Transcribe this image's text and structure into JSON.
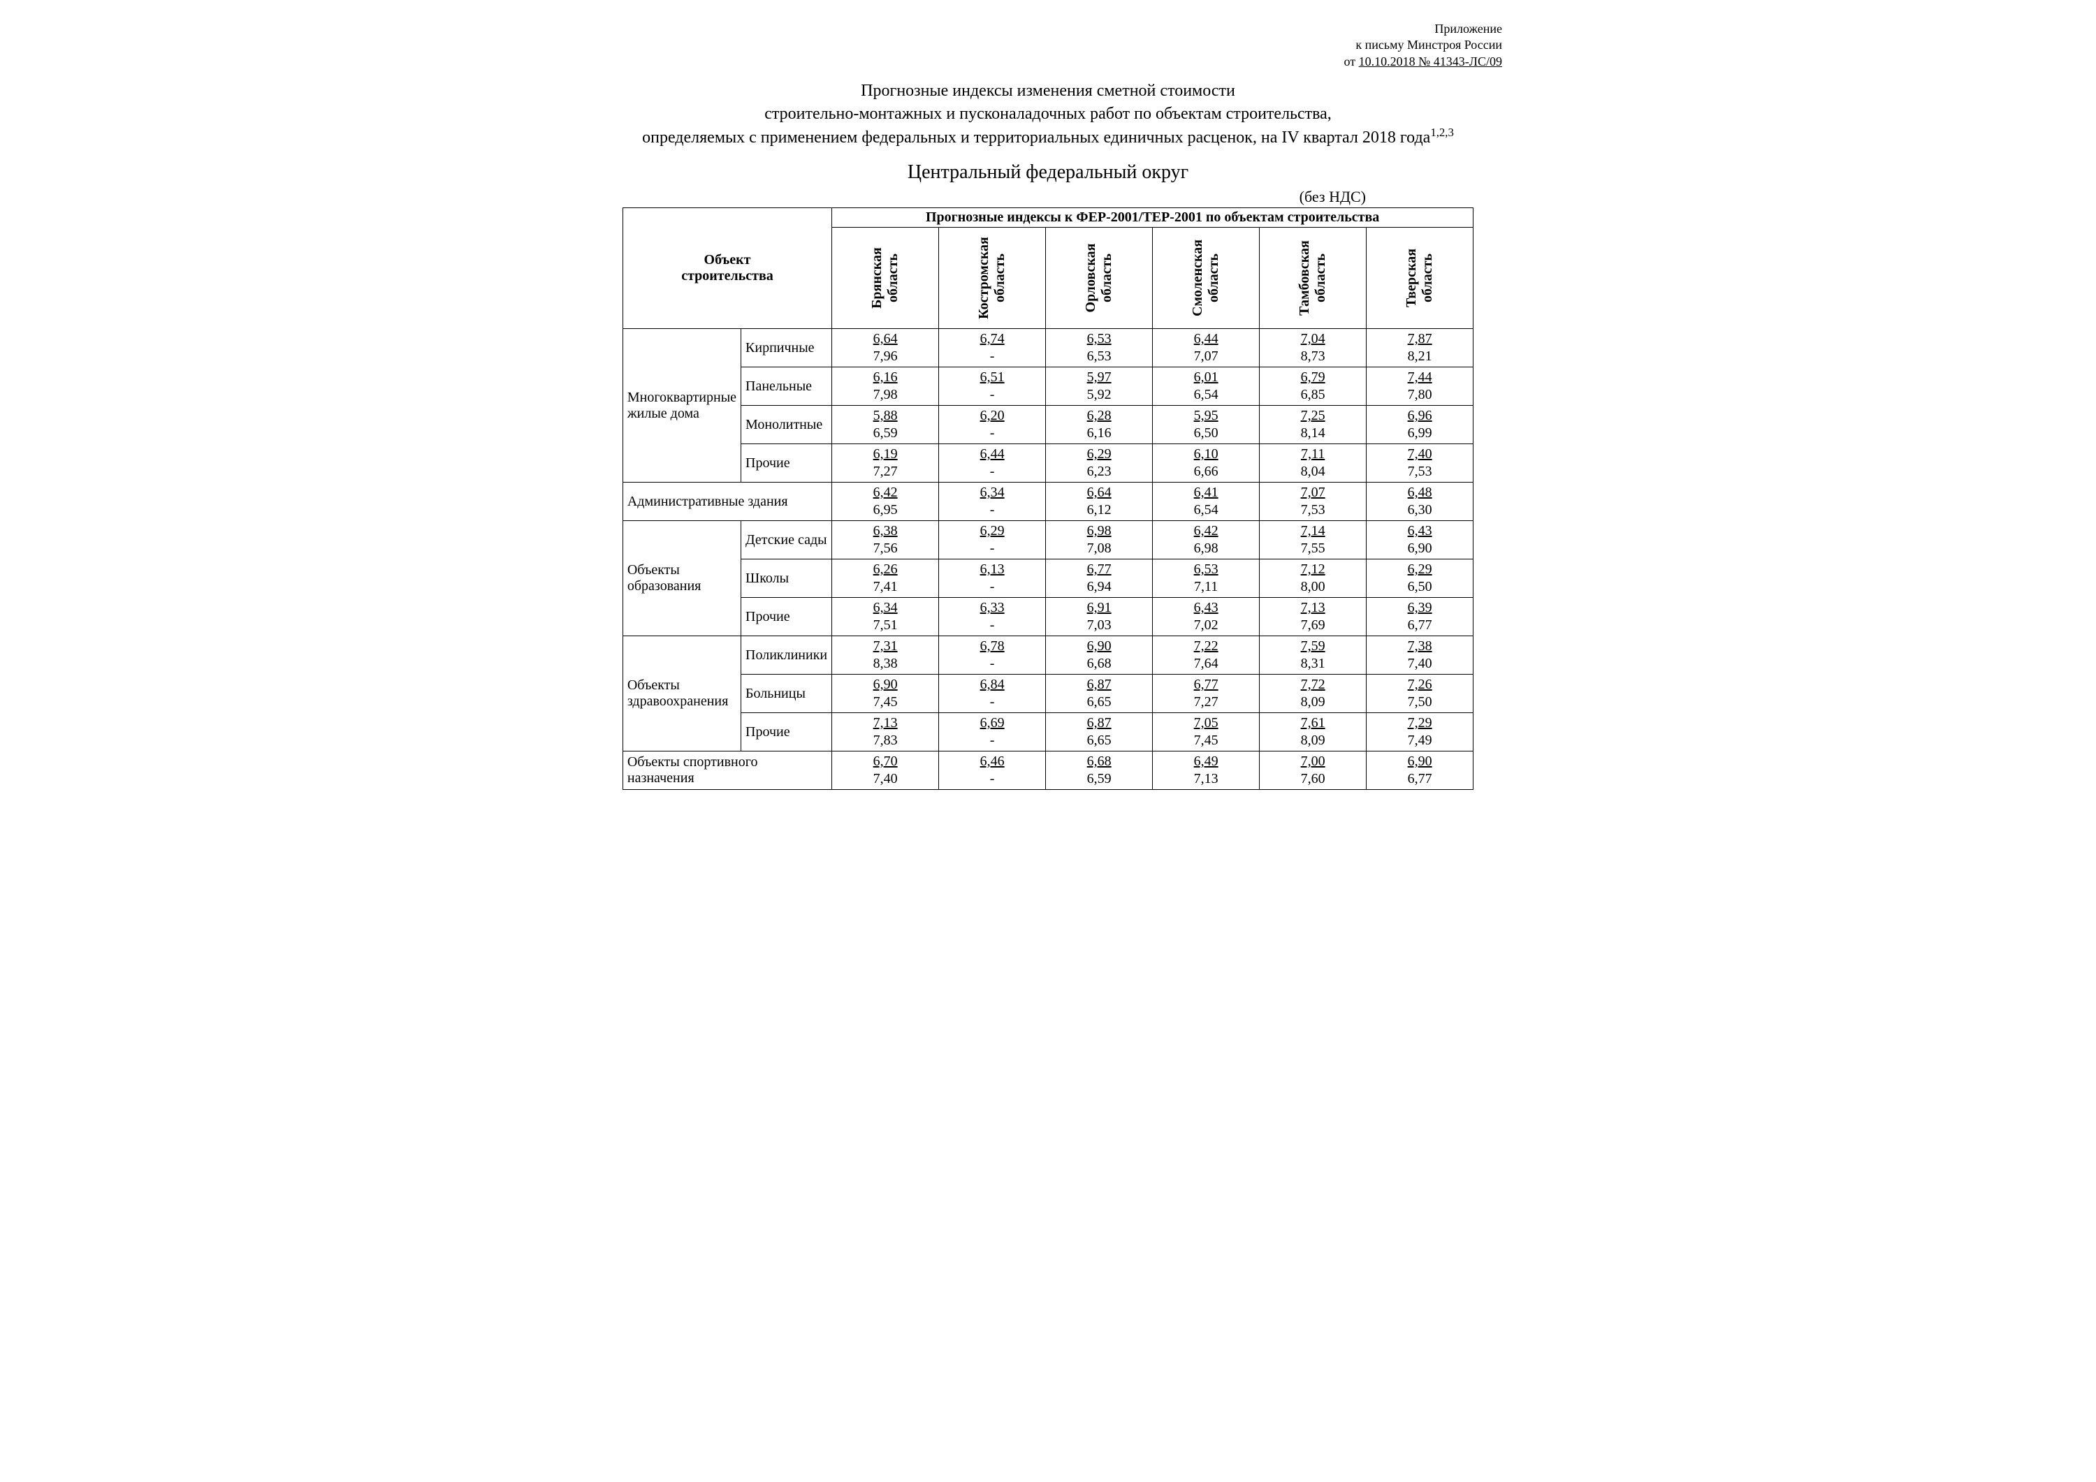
{
  "annex": {
    "line1": "Приложение",
    "line2": "к письму Минстроя России",
    "line3_prefix": "от ",
    "line3_ref": "10.10.2018 № 41343-ЛС/09"
  },
  "title": {
    "l1": "Прогнозные индексы изменения сметной стоимости",
    "l2": "строительно-монтажных и пусконаладочных работ по объектам строительства,",
    "l3": "определяемых с применением федеральных и территориальных единичных расценок, на IV квартал 2018 года",
    "l3_sup": "1,2,3"
  },
  "subtitle": "Центральный федеральный округ",
  "note": "(без НДС)",
  "table": {
    "header_main": "Прогнозные индексы к ФЕР-2001/ТЕР-2001 по объектам строительства",
    "header_obj_l1": "Объект",
    "header_obj_l2": "строительства",
    "regions": [
      "Брянская область",
      "Костромская область",
      "Орловская область",
      "Смоленская область",
      "Тамбовская область",
      "Тверская область"
    ],
    "groups": [
      {
        "label": "Многоквартирные жилые дома",
        "rows": [
          {
            "sub": "Кирпичные",
            "vals": [
              [
                "6,64",
                "7,96"
              ],
              [
                "6,74",
                "-"
              ],
              [
                "6,53",
                "6,53"
              ],
              [
                "6,44",
                "7,07"
              ],
              [
                "7,04",
                "8,73"
              ],
              [
                "7,87",
                "8,21"
              ]
            ]
          },
          {
            "sub": "Панельные",
            "vals": [
              [
                "6,16",
                "7,98"
              ],
              [
                "6,51",
                "-"
              ],
              [
                "5,97",
                "5,92"
              ],
              [
                "6,01",
                "6,54"
              ],
              [
                "6,79",
                "6,85"
              ],
              [
                "7,44",
                "7,80"
              ]
            ]
          },
          {
            "sub": "Монолитные",
            "vals": [
              [
                "5,88",
                "6,59"
              ],
              [
                "6,20",
                "-"
              ],
              [
                "6,28",
                "6,16"
              ],
              [
                "5,95",
                "6,50"
              ],
              [
                "7,25",
                "8,14"
              ],
              [
                "6,96",
                "6,99"
              ]
            ]
          },
          {
            "sub": "Прочие",
            "vals": [
              [
                "6,19",
                "7,27"
              ],
              [
                "6,44",
                "-"
              ],
              [
                "6,29",
                "6,23"
              ],
              [
                "6,10",
                "6,66"
              ],
              [
                "7,11",
                "8,04"
              ],
              [
                "7,40",
                "7,53"
              ]
            ]
          }
        ]
      },
      {
        "label": "Административные здания",
        "span2": true,
        "rows": [
          {
            "sub": null,
            "vals": [
              [
                "6,42",
                "6,95"
              ],
              [
                "6,34",
                "-"
              ],
              [
                "6,64",
                "6,12"
              ],
              [
                "6,41",
                "6,54"
              ],
              [
                "7,07",
                "7,53"
              ],
              [
                "6,48",
                "6,30"
              ]
            ]
          }
        ]
      },
      {
        "label": "Объекты образования",
        "rows": [
          {
            "sub": "Детские сады",
            "vals": [
              [
                "6,38",
                "7,56"
              ],
              [
                "6,29",
                "-"
              ],
              [
                "6,98",
                "7,08"
              ],
              [
                "6,42",
                "6,98"
              ],
              [
                "7,14",
                "7,55"
              ],
              [
                "6,43",
                "6,90"
              ]
            ]
          },
          {
            "sub": "Школы",
            "vals": [
              [
                "6,26",
                "7,41"
              ],
              [
                "6,13",
                "-"
              ],
              [
                "6,77",
                "6,94"
              ],
              [
                "6,53",
                "7,11"
              ],
              [
                "7,12",
                "8,00"
              ],
              [
                "6,29",
                "6,50"
              ]
            ]
          },
          {
            "sub": "Прочие",
            "vals": [
              [
                "6,34",
                "7,51"
              ],
              [
                "6,33",
                "-"
              ],
              [
                "6,91",
                "7,03"
              ],
              [
                "6,43",
                "7,02"
              ],
              [
                "7,13",
                "7,69"
              ],
              [
                "6,39",
                "6,77"
              ]
            ]
          }
        ]
      },
      {
        "label": "Объекты здравоохранения",
        "rows": [
          {
            "sub": "Поликлиники",
            "vals": [
              [
                "7,31",
                "8,38"
              ],
              [
                "6,78",
                "-"
              ],
              [
                "6,90",
                "6,68"
              ],
              [
                "7,22",
                "7,64"
              ],
              [
                "7,59",
                "8,31"
              ],
              [
                "7,38",
                "7,40"
              ]
            ]
          },
          {
            "sub": "Больницы",
            "vals": [
              [
                "6,90",
                "7,45"
              ],
              [
                "6,84",
                "-"
              ],
              [
                "6,87",
                "6,65"
              ],
              [
                "6,77",
                "7,27"
              ],
              [
                "7,72",
                "8,09"
              ],
              [
                "7,26",
                "7,50"
              ]
            ]
          },
          {
            "sub": "Прочие",
            "vals": [
              [
                "7,13",
                "7,83"
              ],
              [
                "6,69",
                "-"
              ],
              [
                "6,87",
                "6,65"
              ],
              [
                "7,05",
                "7,45"
              ],
              [
                "7,61",
                "8,09"
              ],
              [
                "7,29",
                "7,49"
              ]
            ]
          }
        ]
      },
      {
        "label": "Объекты спортивного назначения",
        "span2": true,
        "rows": [
          {
            "sub": null,
            "vals": [
              [
                "6,70",
                "7,40"
              ],
              [
                "6,46",
                "-"
              ],
              [
                "6,68",
                "6,59"
              ],
              [
                "6,49",
                "7,13"
              ],
              [
                "7,00",
                "7,60"
              ],
              [
                "6,90",
                "6,77"
              ]
            ]
          }
        ]
      }
    ]
  }
}
